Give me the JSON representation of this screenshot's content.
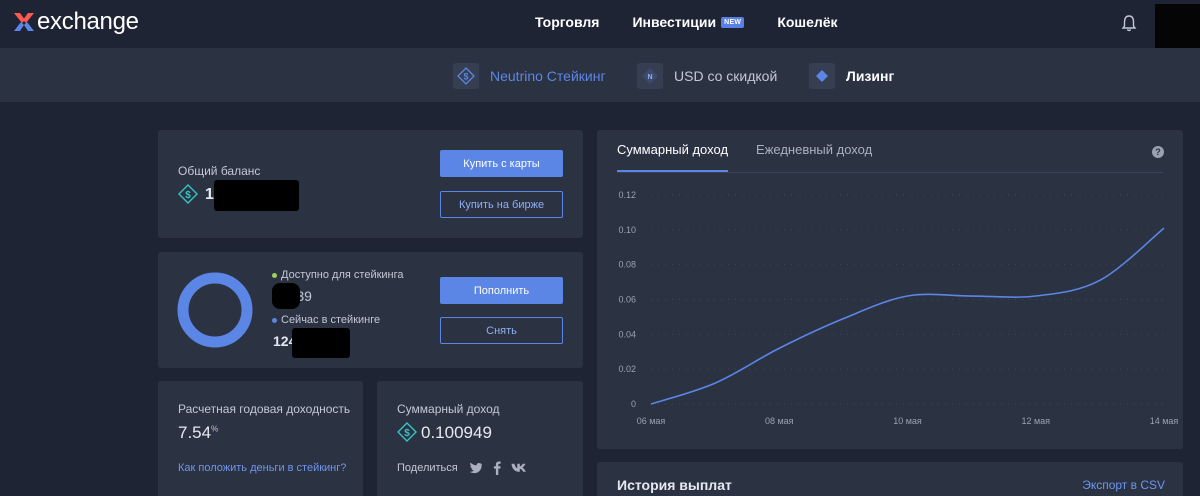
{
  "header": {
    "logo_text": "exchange",
    "nav": [
      {
        "label": "Торговля"
      },
      {
        "label": "Инвестиции",
        "badge": "NEW"
      },
      {
        "label": "Кошелёк"
      }
    ]
  },
  "subnav": {
    "items": [
      {
        "label": "Neutrino Стейкинг",
        "icon": "dollar-coin-icon",
        "color": "#5b86e5"
      },
      {
        "label": "USD со скидкой",
        "icon": "neutrino-coin-icon",
        "color": "#c3c8d4"
      },
      {
        "label": "Лизинг",
        "icon": "waves-diamond-icon",
        "color": "#ffffff"
      }
    ]
  },
  "balance_card": {
    "label": "Общий баланс",
    "value": "1",
    "buy_card_label": "Купить с карты",
    "buy_exchange_label": "Купить на бирже"
  },
  "staking_card": {
    "available_label": "Доступно для стейкинга",
    "available_value": "39339",
    "staked_label": "Сейчас в стейкинге",
    "staked_value": "124",
    "deposit_label": "Пополнить",
    "withdraw_label": "Снять"
  },
  "yield_card": {
    "label": "Расчетная годовая доходность",
    "value": "7.54",
    "unit": "%",
    "link": "Как положить деньги в стейкинг?"
  },
  "total_income_card": {
    "label": "Суммарный доход",
    "value": "0.100949",
    "share_label": "Поделиться",
    "share_icons": [
      "twitter-icon",
      "facebook-icon",
      "vk-icon"
    ]
  },
  "chart_panel": {
    "tabs": [
      {
        "label": "Суммарный доход",
        "active": true
      },
      {
        "label": "Ежедневный доход",
        "active": false
      }
    ],
    "help": "?"
  },
  "history": {
    "title": "История выплат",
    "export_label": "Экспорт в CSV"
  },
  "colors": {
    "accent": "#5b86e5",
    "available_dot": "#9bd35b",
    "background": "#1e2433",
    "card": "#2b3242"
  },
  "chart_data": {
    "type": "line",
    "x": [
      "06 мая",
      "07 мая",
      "08 мая",
      "09 мая",
      "10 мая",
      "11 мая",
      "12 мая",
      "13 мая",
      "14 мая"
    ],
    "y": [
      0,
      0.012,
      0.032,
      0.049,
      0.062,
      0.062,
      0.062,
      0.071,
      0.101
    ],
    "x_ticks": [
      "06 мая",
      "08 мая",
      "10 мая",
      "12 мая",
      "14 мая"
    ],
    "y_ticks": [
      "0",
      "0.02",
      "0.04",
      "0.06",
      "0.08",
      "0.10",
      "0.12"
    ],
    "ylim": [
      0,
      0.12
    ],
    "grid": true
  }
}
